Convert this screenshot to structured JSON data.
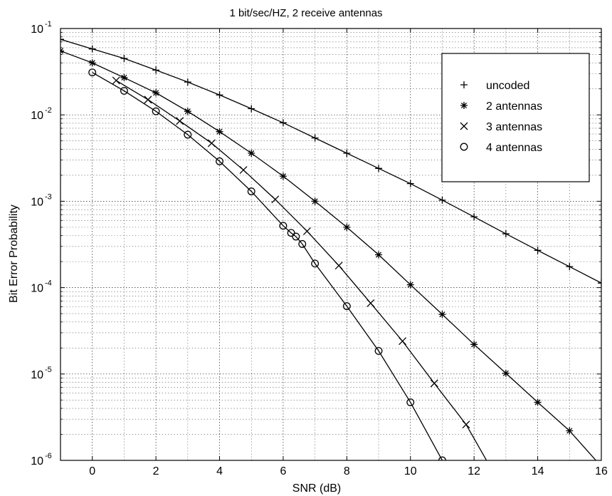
{
  "chart_data": {
    "type": "line",
    "title": "1 bit/sec/HZ, 2 receive antennas",
    "xlabel": "SNR (dB)",
    "ylabel": "Bit Error Probability",
    "xlim": [
      -1,
      16
    ],
    "ylim_exponents": [
      -6,
      -1
    ],
    "y_scale": "log",
    "grid": true,
    "legend_position": "top-right",
    "x_ticks": [
      "0",
      "2",
      "4",
      "6",
      "8",
      "10",
      "12",
      "14",
      "16"
    ],
    "y_tick_base": "10",
    "y_tick_exponents": [
      "-6",
      "-5",
      "-4",
      "-3",
      "-2",
      "-1"
    ],
    "series": [
      {
        "name": "uncoded",
        "marker": "plus",
        "x": [
          -1,
          0,
          1,
          2,
          3,
          4,
          5,
          6,
          7,
          8,
          9,
          10,
          11,
          12,
          13,
          14,
          15,
          16
        ],
        "y": [
          0.075,
          0.058,
          0.045,
          0.033,
          0.024,
          0.017,
          0.0118,
          0.0081,
          0.0054,
          0.0036,
          0.0024,
          0.0016,
          0.00103,
          0.00066,
          0.00042,
          0.00027,
          0.000175,
          0.000113
        ]
      },
      {
        "name": "2 antennas",
        "marker": "asterisk",
        "x": [
          -1,
          0,
          1,
          2,
          3,
          4,
          5,
          6,
          7,
          8,
          9,
          10,
          11,
          12,
          13,
          14,
          15,
          16
        ],
        "y": [
          0.055,
          0.04,
          0.027,
          0.018,
          0.011,
          0.0064,
          0.0036,
          0.00195,
          0.001,
          0.0005,
          0.00024,
          0.000108,
          4.9e-05,
          2.2e-05,
          1.02e-05,
          4.7e-06,
          2.2e-06,
          8.5e-07
        ]
      },
      {
        "name": "3 antennas",
        "marker": "x",
        "x": [
          0.75,
          1.75,
          2.75,
          3.75,
          4.75,
          5.75,
          6.75,
          7.75,
          8.75,
          9.75,
          10.75,
          11.75,
          12.5
        ],
        "y": [
          0.025,
          0.015,
          0.0085,
          0.0047,
          0.0023,
          0.00105,
          0.00045,
          0.00018,
          6.6e-05,
          2.4e-05,
          7.8e-06,
          2.6e-06,
          8.5e-07
        ]
      },
      {
        "name": "4 antennas",
        "marker": "circle",
        "x": [
          0,
          1,
          2,
          3,
          4,
          5,
          6,
          6.25,
          6.4,
          6.6,
          7,
          8,
          9,
          10,
          11
        ],
        "y": [
          0.031,
          0.019,
          0.011,
          0.0059,
          0.0029,
          0.0013,
          0.00052,
          0.00043,
          0.00039,
          0.00032,
          0.00019,
          6.1e-05,
          1.85e-05,
          4.7e-06,
          1e-06
        ]
      }
    ]
  }
}
